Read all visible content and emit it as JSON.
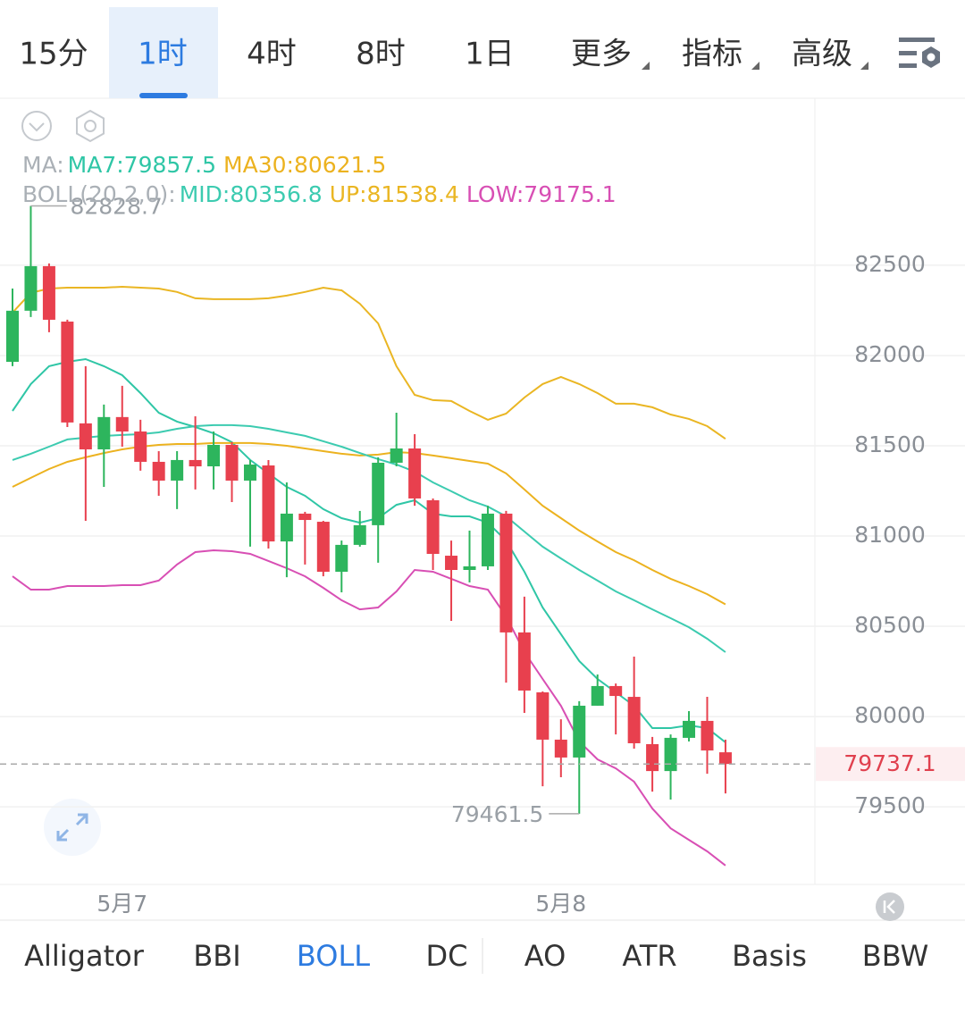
{
  "tabs": {
    "items": [
      "15分",
      "1时",
      "4时",
      "8时",
      "1日",
      "更多",
      "指标",
      "高级"
    ],
    "active": 1
  },
  "legend": {
    "ma_prefix": "MA:",
    "ma_items": [
      "MA7:79857.5",
      "MA30:80621.5"
    ],
    "boll_prefix": "BOLL(20,2,0):",
    "boll_items": [
      "MID:80356.8",
      "UP:81538.4",
      "LOW:79175.1"
    ]
  },
  "chart_data": {
    "type": "candlestick",
    "categories": [
      null,
      null,
      null,
      null,
      null,
      null,
      "5月7",
      null,
      null,
      null,
      null,
      null,
      null,
      null,
      null,
      null,
      null,
      null,
      null,
      null,
      null,
      null,
      null,
      null,
      null,
      null,
      null,
      null,
      null,
      null,
      "5月8",
      null,
      null,
      null,
      null,
      null,
      null,
      null,
      null,
      null
    ],
    "open": [
      81965,
      82248,
      82495,
      82188,
      81624,
      81480,
      81659,
      81579,
      81411,
      81307,
      81421,
      81386,
      81505,
      81307,
      81391,
      80970,
      81124,
      81079,
      80802,
      80951,
      81060,
      81406,
      81485,
      81198,
      80891,
      80812,
      80832,
      81124,
      80466,
      80134,
      79872,
      79773,
      80060,
      80169,
      80109,
      79847,
      79698,
      79882,
      79976,
      79802
    ],
    "high": [
      82371,
      82828.7,
      82510,
      82198,
      81941,
      81728,
      81832,
      81644,
      81470,
      81470,
      81663,
      81579,
      81520,
      81421,
      81421,
      81297,
      81134,
      81084,
      80975,
      81139,
      81436,
      81683,
      81564,
      81208,
      80975,
      81030,
      81168,
      81139,
      80664,
      80139,
      79985,
      80085,
      80233,
      80183,
      80332,
      79887,
      79901,
      80030,
      80109,
      79872
    ],
    "low": [
      81941,
      82213,
      82129,
      81604,
      81084,
      81272,
      81495,
      81362,
      81223,
      81149,
      81258,
      81258,
      81188,
      80941,
      80931,
      80772,
      80842,
      80777,
      80688,
      80941,
      80852,
      81386,
      81168,
      80812,
      80530,
      80743,
      80812,
      80188,
      80020,
      79614,
      79664,
      79461.5,
      80060,
      79901,
      79822,
      79584,
      79540,
      79862,
      79683,
      79574
    ],
    "close": [
      82248,
      82495,
      82198,
      81629,
      81480,
      81659,
      81579,
      81411,
      81307,
      81421,
      81386,
      81505,
      81307,
      81396,
      80970,
      81124,
      81089,
      80802,
      80951,
      81060,
      81406,
      81485,
      81208,
      80901,
      80812,
      80832,
      81124,
      80466,
      80144,
      79872,
      79773,
      80060,
      80169,
      80114,
      79852,
      79698,
      79882,
      79976,
      79812,
      79737.1
    ],
    "up_color": "#2db55d",
    "down_color": "#e8404e",
    "series": [
      {
        "name": "MA7",
        "color": "#2fc6a6",
        "values": [
          81693,
          81842,
          81941,
          81965,
          81980,
          81941,
          81891,
          81792,
          81683,
          81634,
          81604,
          81569,
          81520,
          81421,
          81347,
          81272,
          81223,
          81149,
          81099,
          81074,
          81099,
          81173,
          81198,
          81124,
          81109,
          81109,
          81074,
          80975,
          80802,
          80604,
          80456,
          80307,
          80208,
          80134,
          80060,
          79936,
          79936,
          79951,
          79936,
          79857.5
        ]
      },
      {
        "name": "MA30",
        "color": "#ecb21f",
        "values": [
          81272,
          81322,
          81371,
          81411,
          81436,
          81460,
          81480,
          81495,
          81505,
          81510,
          81510,
          81515,
          81515,
          81515,
          81510,
          81500,
          81485,
          81470,
          81456,
          81446,
          81451,
          81465,
          81460,
          81446,
          81431,
          81416,
          81401,
          81347,
          81258,
          81168,
          81099,
          81030,
          80970,
          80911,
          80866,
          80812,
          80763,
          80723,
          80678,
          80621.5
        ]
      },
      {
        "name": "MID",
        "color": "#3ccbb0",
        "values": [
          81421,
          81456,
          81495,
          81535,
          81545,
          81555,
          81560,
          81564,
          81574,
          81594,
          81609,
          81614,
          81614,
          81609,
          81594,
          81574,
          81555,
          81525,
          81495,
          81460,
          81426,
          81396,
          81357,
          81297,
          81248,
          81198,
          81163,
          81109,
          81025,
          80941,
          80876,
          80812,
          80753,
          80693,
          80644,
          80594,
          80545,
          80495,
          80431,
          80356.8
        ]
      },
      {
        "name": "UP",
        "color": "#eab623",
        "values": [
          82238,
          82347,
          82371,
          82376,
          82376,
          82376,
          82381,
          82376,
          82371,
          82352,
          82317,
          82312,
          82312,
          82312,
          82317,
          82332,
          82352,
          82376,
          82361,
          82287,
          82178,
          81941,
          81782,
          81753,
          81748,
          81693,
          81644,
          81678,
          81767,
          81842,
          81881,
          81842,
          81792,
          81733,
          81733,
          81713,
          81673,
          81649,
          81609,
          81538.4
        ]
      },
      {
        "name": "LOW",
        "color": "#d84fb4",
        "values": [
          80777,
          80703,
          80703,
          80723,
          80723,
          80723,
          80728,
          80728,
          80753,
          80842,
          80911,
          80921,
          80916,
          80901,
          80862,
          80822,
          80777,
          80713,
          80644,
          80594,
          80604,
          80693,
          80812,
          80802,
          80763,
          80723,
          80703,
          80555,
          80357,
          80208,
          80060,
          79862,
          79763,
          79713,
          79639,
          79490,
          79381,
          79317,
          79253,
          79175.1
        ]
      }
    ],
    "ylim": [
      79070,
      83425
    ],
    "yticks": [
      79500,
      80000,
      80500,
      81000,
      81500,
      82000,
      82500
    ],
    "grid": true
  },
  "indicators": {
    "items": [
      "Alligator",
      "BBI",
      "BOLL",
      "DC",
      "AO",
      "ATR",
      "Basis",
      "BBW"
    ],
    "active": 2
  }
}
